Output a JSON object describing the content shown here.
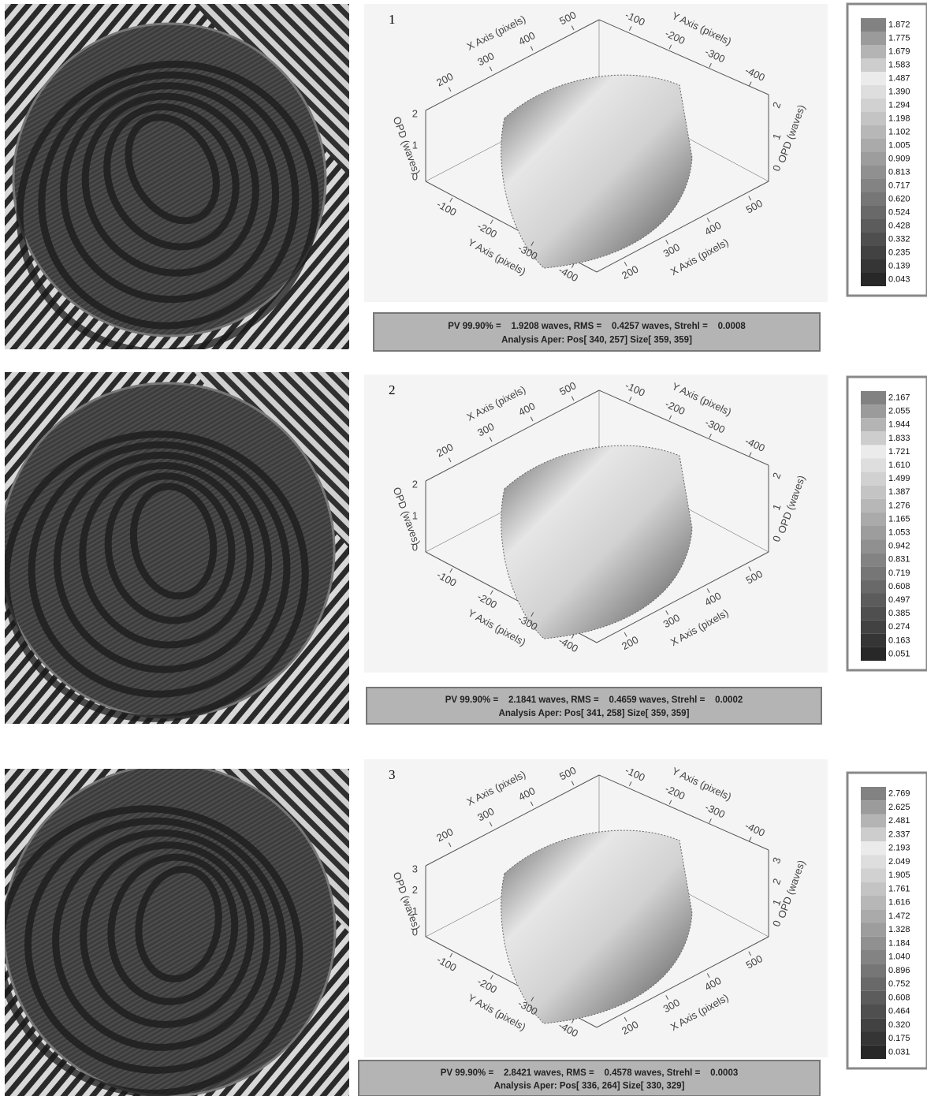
{
  "panels": [
    {
      "label": "1",
      "axes": {
        "x": "X Axis (pixels)",
        "y": "Y Axis (pixels)",
        "opd": "OPD (waves)"
      },
      "x_ticks": [
        "200",
        "300",
        "400",
        "500"
      ],
      "y_ticks": [
        "-100",
        "-200",
        "-300",
        "-400"
      ],
      "opd_ticks": [
        "0",
        "1",
        "2"
      ],
      "colorbar": [
        "1.872",
        "1.775",
        "1.679",
        "1.583",
        "1.487",
        "1.390",
        "1.294",
        "1.198",
        "1.102",
        "1.005",
        "0.909",
        "0.813",
        "0.717",
        "0.620",
        "0.524",
        "0.428",
        "0.332",
        "0.235",
        "0.139",
        "0.043"
      ],
      "stats": [
        "PV 99.90% =    1.9208 waves, RMS =    0.4257 waves, Strehl =    0.0008",
        "Analysis Aper: Pos[ 340, 257] Size[ 359, 359]"
      ]
    },
    {
      "label": "2",
      "axes": {
        "x": "X Axis (pixels)",
        "y": "Y Axis (pixels)",
        "opd": "OPD (waves)"
      },
      "x_ticks": [
        "200",
        "300",
        "400",
        "500"
      ],
      "y_ticks": [
        "-100",
        "-200",
        "-300",
        "-400"
      ],
      "opd_ticks": [
        "0",
        "1",
        "2"
      ],
      "colorbar": [
        "2.167",
        "2.055",
        "1.944",
        "1.833",
        "1.721",
        "1.610",
        "1.499",
        "1.387",
        "1.276",
        "1.165",
        "1.053",
        "0.942",
        "0.831",
        "0.719",
        "0.608",
        "0.497",
        "0.385",
        "0.274",
        "0.163",
        "0.051"
      ],
      "stats": [
        "PV 99.90% =    2.1841 waves, RMS =    0.4659 waves, Strehl =    0.0002",
        "Analysis Aper: Pos[ 341, 258] Size[ 359, 359]"
      ]
    },
    {
      "label": "3",
      "axes": {
        "x": "X Axis (pixels)",
        "y": "Y Axis (pixels)",
        "opd": "OPD (waves)"
      },
      "x_ticks": [
        "200",
        "300",
        "400",
        "500"
      ],
      "y_ticks": [
        "-100",
        "-200",
        "-300",
        "-400"
      ],
      "opd_ticks": [
        "0",
        "1",
        "2",
        "3"
      ],
      "colorbar": [
        "2.769",
        "2.625",
        "2.481",
        "2.337",
        "2.193",
        "2.049",
        "1.905",
        "1.761",
        "1.616",
        "1.472",
        "1.328",
        "1.184",
        "1.040",
        "0.896",
        "0.752",
        "0.608",
        "0.464",
        "0.320",
        "0.175",
        "0.031"
      ],
      "stats": [
        "PV 99.90% =    2.8421 waves, RMS =    0.4578 waves, Strehl =    0.0003",
        "Analysis Aper: Pos[ 336, 264] Size[ 330, 329]"
      ]
    }
  ]
}
